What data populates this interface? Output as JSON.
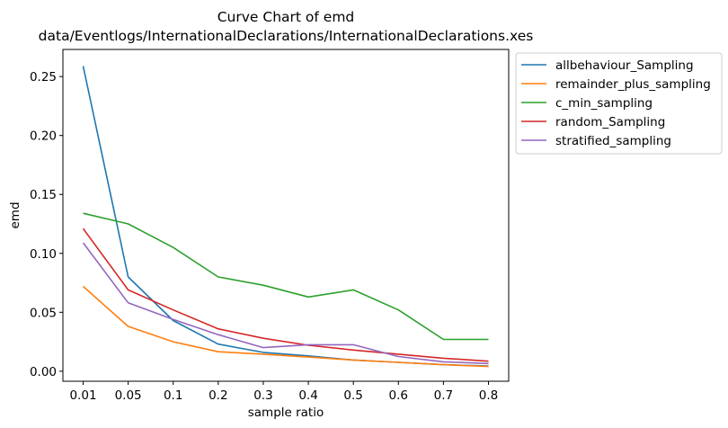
{
  "chart_data": {
    "type": "line",
    "title": "Curve Chart of emd",
    "subtitle": "data/Eventlogs/InternationalDeclarations/InternationalDeclarations.xes",
    "xlabel": "sample ratio",
    "ylabel": "emd",
    "categories": [
      "0.01",
      "0.05",
      "0.1",
      "0.2",
      "0.3",
      "0.4",
      "0.5",
      "0.6",
      "0.7",
      "0.8"
    ],
    "ylim": [
      -0.0085,
      0.273
    ],
    "yticks": [
      "0.00",
      "0.05",
      "0.10",
      "0.15",
      "0.20",
      "0.25"
    ],
    "grid": false,
    "legend_position": "outside-top-right",
    "series": [
      {
        "name": "allbehaviour_Sampling",
        "color": "#1f77b4",
        "values": [
          0.259,
          0.08,
          0.043,
          0.023,
          0.016,
          0.013,
          0.0095,
          0.0075,
          0.0055,
          0.0045
        ]
      },
      {
        "name": "remainder_plus_sampling",
        "color": "#ff7f0e",
        "values": [
          0.072,
          0.038,
          0.025,
          0.0165,
          0.0145,
          0.012,
          0.0095,
          0.0075,
          0.0055,
          0.004
        ]
      },
      {
        "name": "c_min_sampling",
        "color": "#2ca02c",
        "values": [
          0.134,
          0.125,
          0.105,
          0.08,
          0.073,
          0.063,
          0.069,
          0.052,
          0.027,
          0.027
        ]
      },
      {
        "name": "random_Sampling",
        "color": "#d62728",
        "values": [
          0.121,
          0.069,
          0.052,
          0.036,
          0.028,
          0.022,
          0.018,
          0.0145,
          0.011,
          0.0085
        ]
      },
      {
        "name": "stratified_sampling",
        "color": "#9467bd",
        "values": [
          0.109,
          0.058,
          0.044,
          0.031,
          0.02,
          0.0225,
          0.0225,
          0.0125,
          0.008,
          0.0065
        ]
      }
    ]
  }
}
